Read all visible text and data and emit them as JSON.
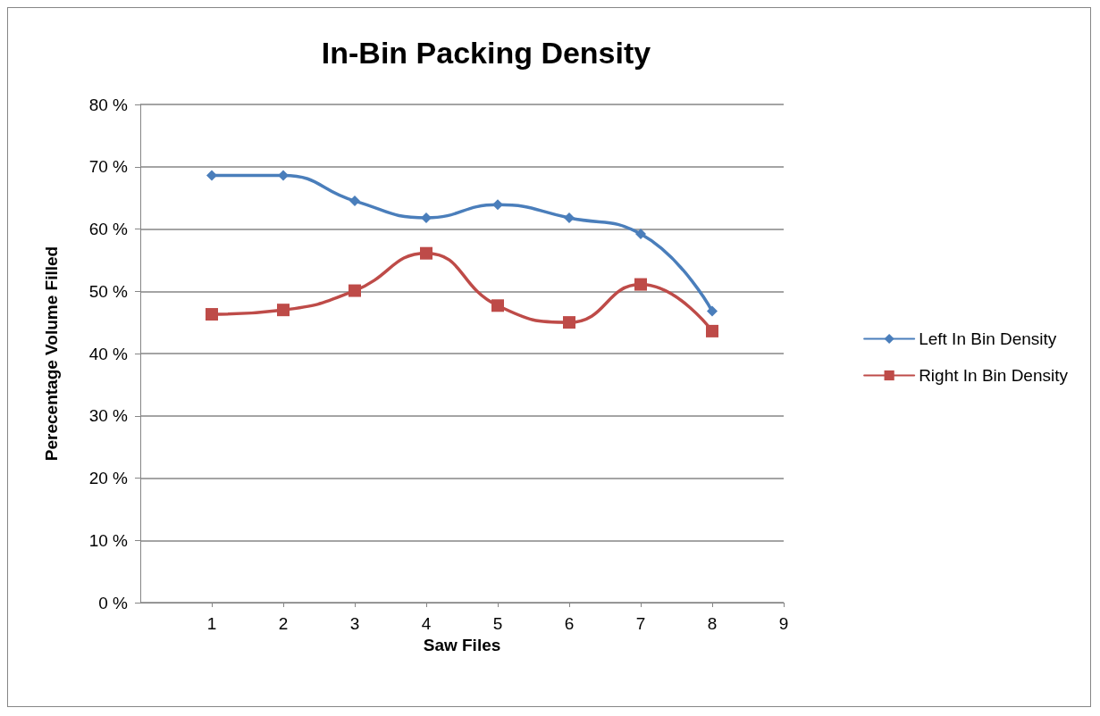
{
  "chart_data": {
    "type": "line",
    "title": "In-Bin Packing Density",
    "xlabel": "Saw Files",
    "ylabel": "Perecentage Volume Filled",
    "x": [
      1,
      2,
      3,
      4,
      5,
      6,
      7,
      8
    ],
    "series": [
      {
        "name": "Left In Bin Density",
        "color": "#4a7ebb",
        "marker": "diamond",
        "values": [
          68.6,
          68.6,
          64.5,
          61.8,
          63.9,
          61.8,
          59.2,
          46.8
        ]
      },
      {
        "name": "Right In Bin Density",
        "color": "#be4b48",
        "marker": "square",
        "values": [
          46.3,
          47.0,
          50.1,
          56.1,
          47.7,
          45.0,
          51.1,
          43.6
        ]
      }
    ],
    "xlim": [
      0,
      9
    ],
    "xticks": [
      1,
      2,
      3,
      4,
      5,
      6,
      7,
      8,
      9
    ],
    "ylim": [
      0,
      80
    ],
    "yticks": [
      {
        "value": 0,
        "label": "0 %"
      },
      {
        "value": 10,
        "label": "10 %"
      },
      {
        "value": 20,
        "label": "20 %"
      },
      {
        "value": 30,
        "label": "30 %"
      },
      {
        "value": 40,
        "label": "40 %"
      },
      {
        "value": 50,
        "label": "50 %"
      },
      {
        "value": 60,
        "label": "60 %"
      },
      {
        "value": 70,
        "label": "70 %"
      },
      {
        "value": 80,
        "label": "80 %"
      }
    ],
    "grid": "y",
    "legend": "right",
    "line_style": "solid"
  }
}
